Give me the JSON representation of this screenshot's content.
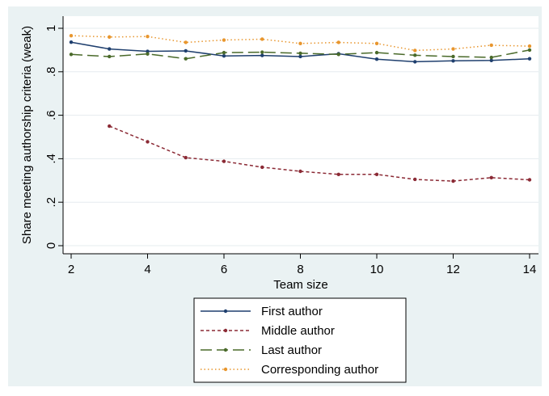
{
  "chart_data": {
    "type": "line",
    "title": "",
    "xlabel": "Team size",
    "ylabel": "Share meeting authorship criteria (weak)",
    "xlim": [
      2,
      14
    ],
    "ylim": [
      0,
      1
    ],
    "x_ticks": [
      2,
      4,
      6,
      8,
      10,
      12,
      14
    ],
    "y_ticks": [
      0,
      0.2,
      0.4,
      0.6,
      0.8,
      1
    ],
    "y_tick_labels": [
      "0",
      ".2",
      ".4",
      ".6",
      ".8",
      "1"
    ],
    "grid": "horizontal",
    "legend_position": "bottom",
    "series": [
      {
        "name": "First author",
        "color": "#1f3f6e",
        "dash": "solid",
        "x": [
          2,
          3,
          4,
          5,
          6,
          7,
          8,
          9,
          10,
          11,
          12,
          13,
          14
        ],
        "y": [
          0.936,
          0.905,
          0.894,
          0.896,
          0.873,
          0.875,
          0.87,
          0.883,
          0.858,
          0.846,
          0.85,
          0.852,
          0.86
        ]
      },
      {
        "name": "Middle author",
        "color": "#8b2a35",
        "dash": "short-dash",
        "x": [
          3,
          4,
          5,
          6,
          7,
          8,
          9,
          10,
          11,
          12,
          13,
          14
        ],
        "y": [
          0.55,
          0.478,
          0.405,
          0.388,
          0.361,
          0.342,
          0.328,
          0.328,
          0.305,
          0.297,
          0.313,
          0.303
        ]
      },
      {
        "name": "Last author",
        "color": "#4a6a2a",
        "dash": "long-dash",
        "x": [
          2,
          3,
          4,
          5,
          6,
          7,
          8,
          9,
          10,
          11,
          12,
          13,
          14
        ],
        "y": [
          0.88,
          0.87,
          0.882,
          0.86,
          0.888,
          0.89,
          0.885,
          0.88,
          0.888,
          0.876,
          0.87,
          0.866,
          0.9
        ]
      },
      {
        "name": "Corresponding author",
        "color": "#e8962e",
        "dash": "dotted",
        "x": [
          2,
          3,
          4,
          5,
          6,
          7,
          8,
          9,
          10,
          11,
          12,
          13,
          14
        ],
        "y": [
          0.966,
          0.96,
          0.962,
          0.935,
          0.946,
          0.95,
          0.93,
          0.935,
          0.93,
          0.898,
          0.905,
          0.922,
          0.918
        ]
      }
    ]
  }
}
